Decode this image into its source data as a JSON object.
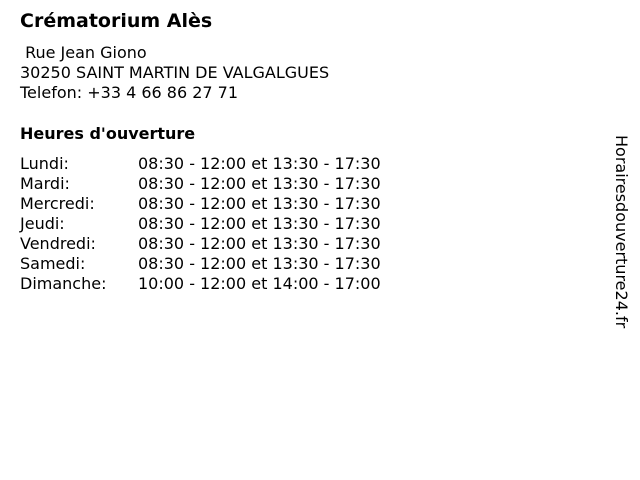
{
  "title": "Crématorium Alès",
  "address": {
    "street": " Rue Jean Giono",
    "city": "30250 SAINT MARTIN DE VALGALGUES",
    "phone": "Telefon: +33 4 66 86 27 71"
  },
  "hours_title": "Heures d'ouverture",
  "hours": [
    {
      "day": "Lundi:",
      "time": "08:30 - 12:00 et 13:30 - 17:30"
    },
    {
      "day": "Mardi:",
      "time": "08:30 - 12:00 et 13:30 - 17:30"
    },
    {
      "day": "Mercredi:",
      "time": "08:30 - 12:00 et 13:30 - 17:30"
    },
    {
      "day": "Jeudi:",
      "time": "08:30 - 12:00 et 13:30 - 17:30"
    },
    {
      "day": "Vendredi:",
      "time": "08:30 - 12:00 et 13:30 - 17:30"
    },
    {
      "day": "Samedi:",
      "time": "08:30 - 12:00 et 13:30 - 17:30"
    },
    {
      "day": "Dimanche:",
      "time": "10:00 - 12:00 et 14:00 - 17:00"
    }
  ],
  "watermark": "Horairesdouverture24.fr"
}
